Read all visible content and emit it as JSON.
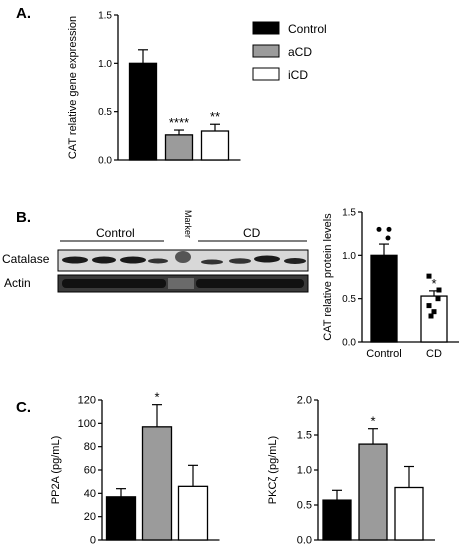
{
  "panels": {
    "a": {
      "label": "A."
    },
    "b": {
      "label": "B.",
      "group_control": "Control",
      "group_cd": "CD",
      "marker": "Marker",
      "row_catalase": "Catalase",
      "row_actin": "Actin"
    },
    "c": {
      "label": "C."
    }
  },
  "colors": {
    "control": "#000000",
    "acd": "#9b9b9b",
    "icd": "#ffffff",
    "cd": "#ffffff"
  },
  "chart_data": [
    {
      "id": "cat_gene",
      "type": "bar",
      "ylabel": "CAT relative gene expression",
      "ylim": [
        0,
        1.5
      ],
      "yticks": [
        "0.0",
        "0.5",
        "1.0",
        "1.5"
      ],
      "categories": [
        "Control",
        "aCD",
        "iCD"
      ],
      "values": [
        1.0,
        0.26,
        0.3
      ],
      "errors": [
        0.14,
        0.05,
        0.07
      ],
      "annotations": [
        "",
        "****",
        "**"
      ],
      "legend": [
        "Control",
        "aCD",
        "iCD"
      ],
      "legend_position": "right"
    },
    {
      "id": "cat_protein",
      "type": "bar",
      "ylabel": "CAT relative protein levels",
      "ylim": [
        0,
        1.5
      ],
      "yticks": [
        "0.0",
        "0.5",
        "1.0",
        "1.5"
      ],
      "categories": [
        "Control",
        "CD"
      ],
      "values": [
        1.0,
        0.53
      ],
      "errors": [
        0.13,
        0.06
      ],
      "annotations": [
        "",
        "*"
      ],
      "points": [
        [
          1.3,
          1.3,
          1.2,
          0.88,
          0.85,
          0.55
        ],
        [
          0.76,
          0.6,
          0.5,
          0.42,
          0.35,
          0.3
        ]
      ]
    },
    {
      "id": "pp2a",
      "type": "bar",
      "ylabel": "PP2A (pg/mL)",
      "ylim": [
        0,
        120
      ],
      "yticks": [
        "0",
        "20",
        "40",
        "60",
        "80",
        "100",
        "120"
      ],
      "categories": [
        "Control",
        "aCD",
        "iCD"
      ],
      "values": [
        37,
        97,
        46
      ],
      "errors": [
        7,
        19,
        18
      ],
      "annotations": [
        "",
        "*",
        ""
      ]
    },
    {
      "id": "pkcz",
      "type": "bar",
      "ylabel": "PKCζ (pg/mL)",
      "ylim": [
        0,
        2.0
      ],
      "yticks": [
        "0.0",
        "0.5",
        "1.0",
        "1.5",
        "2.0"
      ],
      "categories": [
        "Control",
        "aCD",
        "iCD"
      ],
      "values": [
        0.57,
        1.37,
        0.75
      ],
      "errors": [
        0.14,
        0.22,
        0.3
      ],
      "annotations": [
        "",
        "*",
        ""
      ]
    }
  ]
}
